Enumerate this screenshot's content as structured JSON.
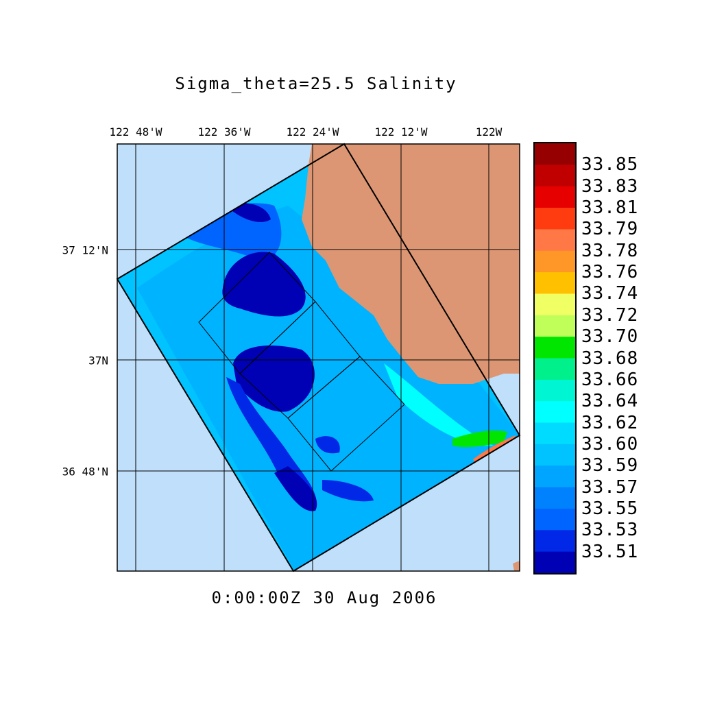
{
  "title": "Sigma_theta=25.5 Salinity",
  "time_label": "0:00:00Z  30 Aug 2006",
  "lon_labels": [
    "122 48'W",
    "122 36'W",
    "122 24'W",
    "122 12'W",
    "122W"
  ],
  "lat_labels": [
    "37 12'N",
    "37N",
    "36 48'N"
  ],
  "colorbar": {
    "labels": [
      "33.85",
      "33.83",
      "33.81",
      "33.79",
      "33.78",
      "33.76",
      "33.74",
      "33.72",
      "33.70",
      "33.68",
      "33.66",
      "33.64",
      "33.62",
      "33.60",
      "33.59",
      "33.57",
      "33.55",
      "33.53",
      "33.51"
    ],
    "colors": [
      "#960000",
      "#c00000",
      "#e60000",
      "#ff3c0f",
      "#ff7846",
      "#ff9628",
      "#ffc000",
      "#f0ff64",
      "#c0ff5a",
      "#00e600",
      "#00f08c",
      "#00f5d2",
      "#00ffff",
      "#00dcff",
      "#00c3ff",
      "#00a5ff",
      "#0082ff",
      "#0064ff",
      "#0028e6",
      "#0000b4"
    ]
  },
  "colors": {
    "ocean": "#c0dffa",
    "land": "#dc9673"
  }
}
